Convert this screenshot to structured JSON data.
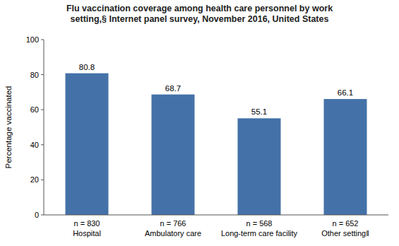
{
  "chart_data": {
    "type": "bar",
    "title": "Flu vaccination coverage among health care personnel by work\nsetting,§ Internet panel survey, November 2016, United States",
    "categories": [
      "n = 830\nHospital",
      "n = 766\nAmbulatory care",
      "n = 568\nLong-term care facility",
      "n = 652\nOther setting‖"
    ],
    "values": [
      80.8,
      68.7,
      55.1,
      66.1
    ],
    "color": "#4472A8",
    "ylabel": "Percentage vaccinated",
    "ylim": [
      0,
      100
    ],
    "yticks": [
      0,
      20,
      40,
      60,
      80,
      100
    ],
    "grid": false,
    "data_labels": true
  }
}
